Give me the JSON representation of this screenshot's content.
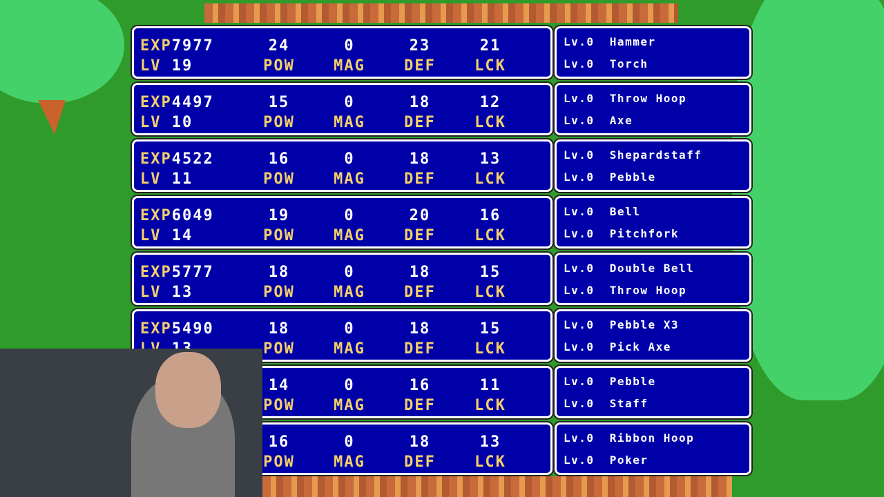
{
  "labels": {
    "exp": "EXP",
    "lv": "LV",
    "pow": "POW",
    "mag": "MAG",
    "def": "DEF",
    "lck": "LCK",
    "weapon_lv": "Lv.0"
  },
  "colors": {
    "panel": "#0000a8",
    "label": "#f4cf6a",
    "value": "#ffffff",
    "grass": "#2f9b2a"
  },
  "characters": [
    {
      "exp": "7977",
      "lv": "19",
      "pow": "24",
      "mag": "0",
      "def": "23",
      "lck": "21",
      "weapons": [
        "Hammer",
        "Torch"
      ]
    },
    {
      "exp": "4497",
      "lv": "10",
      "pow": "15",
      "mag": "0",
      "def": "18",
      "lck": "12",
      "weapons": [
        "Throw Hoop",
        "Axe"
      ]
    },
    {
      "exp": "4522",
      "lv": "11",
      "pow": "16",
      "mag": "0",
      "def": "18",
      "lck": "13",
      "weapons": [
        "Shepardstaff",
        "Pebble"
      ]
    },
    {
      "exp": "6049",
      "lv": "14",
      "pow": "19",
      "mag": "0",
      "def": "20",
      "lck": "16",
      "weapons": [
        "Bell",
        "Pitchfork"
      ]
    },
    {
      "exp": "5777",
      "lv": "13",
      "pow": "18",
      "mag": "0",
      "def": "18",
      "lck": "15",
      "weapons": [
        "Double Bell",
        "Throw Hoop"
      ]
    },
    {
      "exp": "5490",
      "lv": "13",
      "pow": "18",
      "mag": "0",
      "def": "18",
      "lck": "15",
      "weapons": [
        "Pebble X3",
        "Pick Axe"
      ]
    },
    {
      "exp": "",
      "lv": "",
      "pow": "14",
      "mag": "0",
      "def": "16",
      "lck": "11",
      "weapons": [
        "Pebble",
        "Staff"
      ]
    },
    {
      "exp": "",
      "lv": "",
      "pow": "16",
      "mag": "0",
      "def": "18",
      "lck": "13",
      "weapons": [
        "Ribbon Hoop",
        "Poker"
      ]
    }
  ]
}
